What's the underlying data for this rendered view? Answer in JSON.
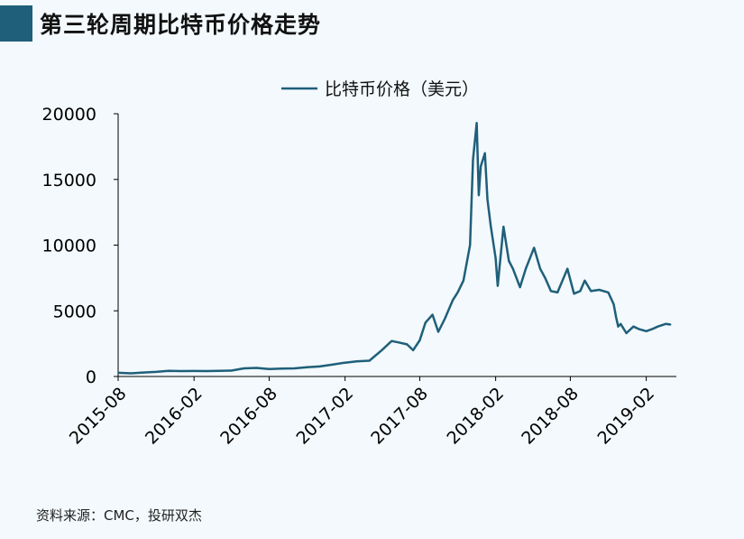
{
  "title": "第三轮周期比特币价格走势",
  "source": "资料来源：CMC，投研双杰",
  "colors": {
    "accent": "#1f5f7a",
    "line": "#1f5f7a",
    "background": "#f3f9fc"
  },
  "chart_data": {
    "type": "line",
    "title": "第三轮周期比特币价格走势",
    "xlabel": "",
    "ylabel": "",
    "ylim": [
      0,
      20000
    ],
    "yticks": [
      0,
      5000,
      10000,
      15000,
      20000
    ],
    "xticks": [
      "2015-08",
      "2016-02",
      "2016-08",
      "2017-02",
      "2017-08",
      "2018-02",
      "2018-08",
      "2019-02"
    ],
    "grid": false,
    "legend_position": "top-center",
    "series": [
      {
        "name": "比特币价格（美元）",
        "color": "#1f5f7a",
        "x": [
          "2015-08-01",
          "2015-09-01",
          "2015-10-01",
          "2015-11-01",
          "2015-12-01",
          "2016-01-01",
          "2016-02-01",
          "2016-03-01",
          "2016-04-01",
          "2016-05-01",
          "2016-06-01",
          "2016-07-01",
          "2016-08-01",
          "2016-09-01",
          "2016-10-01",
          "2016-11-01",
          "2016-12-01",
          "2017-01-01",
          "2017-02-01",
          "2017-03-01",
          "2017-04-01",
          "2017-05-01",
          "2017-05-25",
          "2017-06-10",
          "2017-07-01",
          "2017-07-16",
          "2017-08-01",
          "2017-08-15",
          "2017-09-01",
          "2017-09-15",
          "2017-10-01",
          "2017-10-20",
          "2017-11-01",
          "2017-11-15",
          "2017-12-01",
          "2017-12-08",
          "2017-12-17",
          "2017-12-22",
          "2017-12-27",
          "2018-01-06",
          "2018-01-12",
          "2018-01-20",
          "2018-02-01",
          "2018-02-06",
          "2018-02-20",
          "2018-03-05",
          "2018-03-15",
          "2018-04-01",
          "2018-04-15",
          "2018-05-05",
          "2018-05-20",
          "2018-06-01",
          "2018-06-15",
          "2018-07-01",
          "2018-07-25",
          "2018-08-10",
          "2018-08-25",
          "2018-09-05",
          "2018-09-20",
          "2018-10-10",
          "2018-11-01",
          "2018-11-14",
          "2018-11-20",
          "2018-11-25",
          "2018-12-01",
          "2018-12-15",
          "2019-01-01",
          "2019-01-15",
          "2019-02-01",
          "2019-02-15",
          "2019-03-01",
          "2019-03-20",
          "2019-04-01"
        ],
        "values": [
          280,
          240,
          300,
          350,
          430,
          410,
          420,
          410,
          430,
          450,
          620,
          650,
          570,
          600,
          620,
          700,
          760,
          900,
          1050,
          1150,
          1200,
          2000,
          2700,
          2600,
          2450,
          2000,
          2750,
          4100,
          4700,
          3400,
          4400,
          5800,
          6400,
          7300,
          10000,
          16500,
          19300,
          13800,
          16000,
          17000,
          13500,
          11500,
          9000,
          6900,
          11400,
          8800,
          8200,
          6800,
          8200,
          9800,
          8200,
          7500,
          6500,
          6400,
          8200,
          6300,
          6500,
          7300,
          6500,
          6600,
          6400,
          5500,
          4500,
          3800,
          4000,
          3300,
          3800,
          3600,
          3450,
          3600,
          3800,
          4000,
          3950
        ]
      }
    ]
  }
}
